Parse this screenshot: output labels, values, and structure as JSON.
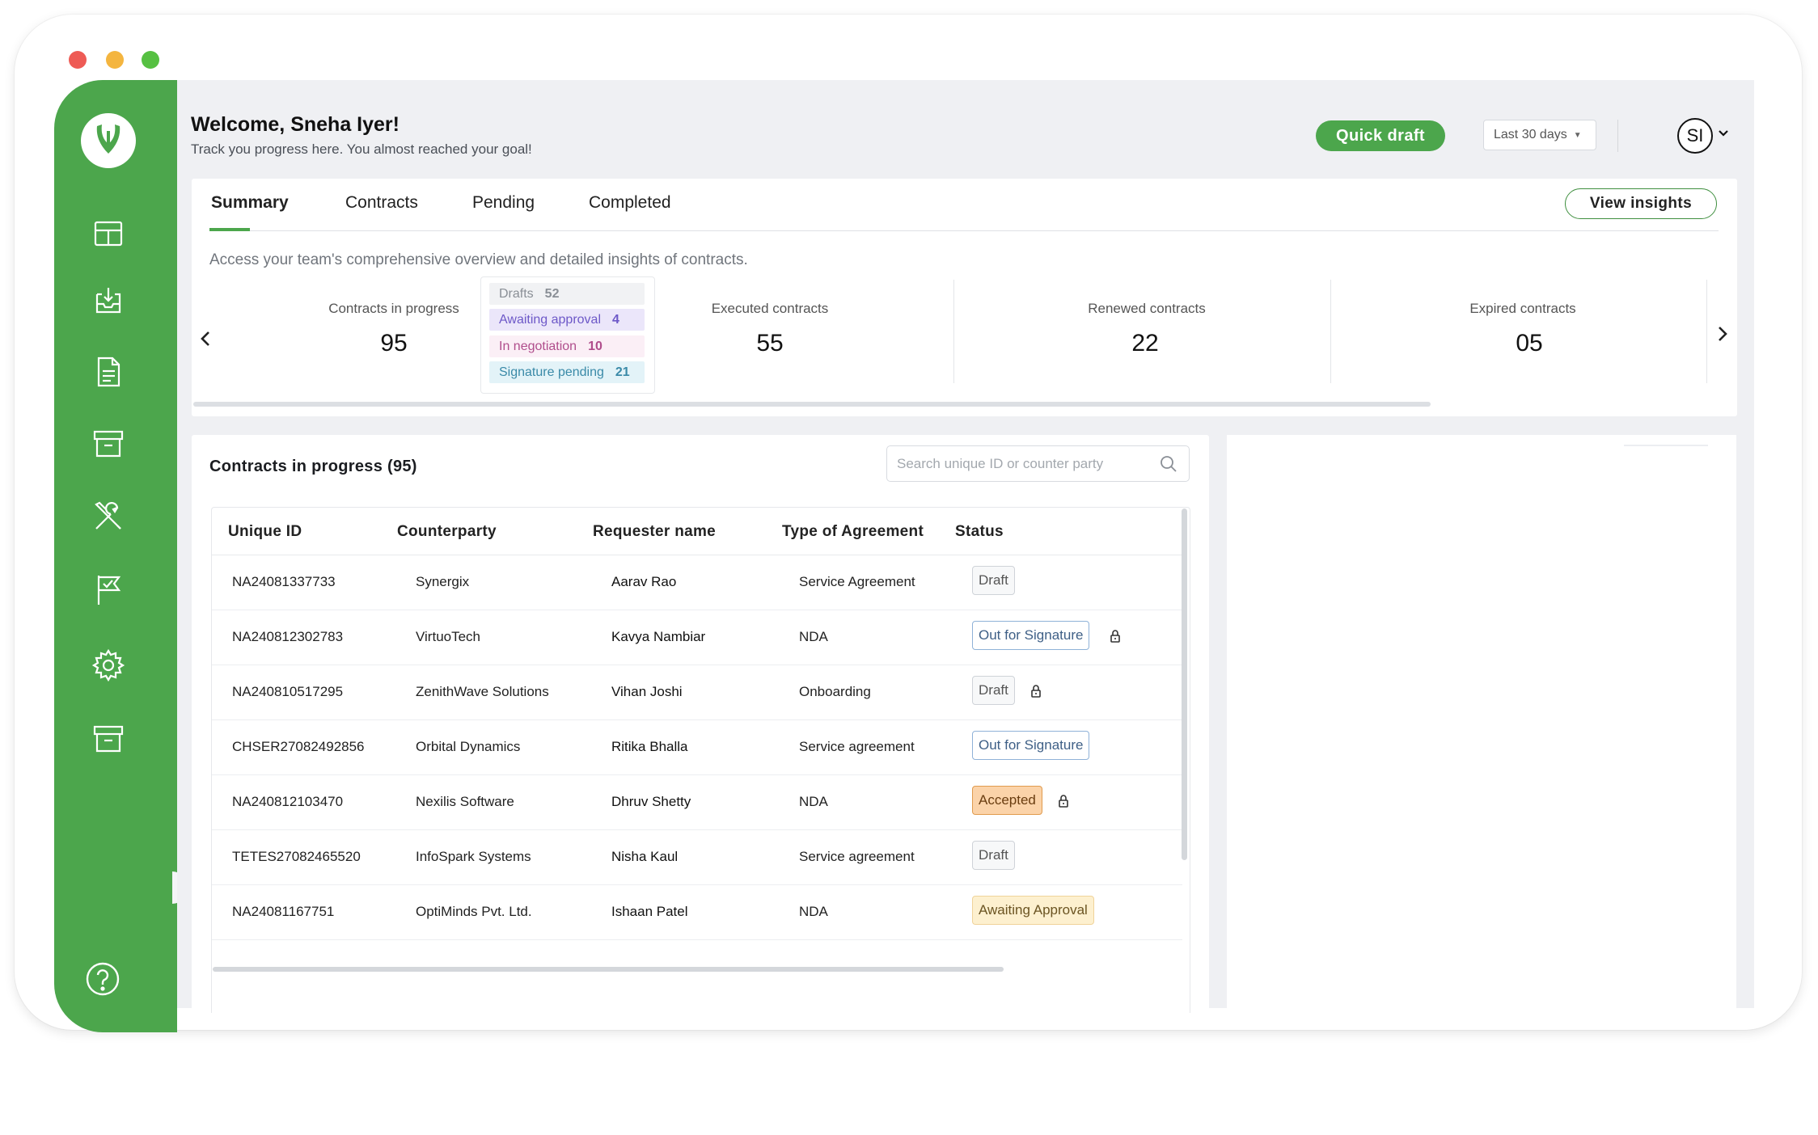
{
  "welcome": {
    "title": "Welcome, Sneha Iyer!",
    "subtitle": "Track you progress here. You almost reached your goal!"
  },
  "header": {
    "quick_draft_label": "Quick draft",
    "date_range": "Last 30 days",
    "avatar_initials": "SI"
  },
  "tabs": [
    {
      "label": "Summary",
      "active": true
    },
    {
      "label": "Contracts",
      "active": false
    },
    {
      "label": "Pending",
      "active": false
    },
    {
      "label": "Completed",
      "active": false
    }
  ],
  "view_insights_label": "View insights",
  "summary_description": "Access your team's comprehensive overview and detailed insights of contracts.",
  "stats": [
    {
      "label": "Contracts in progress",
      "value": "95"
    },
    {
      "label": "Executed contracts",
      "value": "55"
    },
    {
      "label": "Renewed contracts",
      "value": "22"
    },
    {
      "label": "Expired contracts",
      "value": "05"
    }
  ],
  "breakdown": [
    {
      "label": "Drafts",
      "count": "52"
    },
    {
      "label": "Awaiting approval",
      "count": "4"
    },
    {
      "label": "In negotiation",
      "count": "10"
    },
    {
      "label": "Signature pending",
      "count": "21"
    }
  ],
  "contracts": {
    "title": "Contracts in progress (95)",
    "search_placeholder": "Search unique ID or counter party",
    "columns": [
      "Unique ID",
      "Counterparty",
      "Requester name",
      "Type of Agreement",
      "Status"
    ],
    "rows": [
      {
        "id": "NA24081337733",
        "counterparty": "Synergix",
        "requester": "Aarav Rao",
        "type": "Service Agreement",
        "status": "Draft",
        "status_kind": "draft",
        "locked": false
      },
      {
        "id": "NA240812302783",
        "counterparty": "VirtuoTech",
        "requester": "Kavya Nambiar",
        "type": "NDA",
        "status": "Out for Signature",
        "status_kind": "sig",
        "locked": true
      },
      {
        "id": "NA240810517295",
        "counterparty": "ZenithWave Solutions",
        "requester": "Vihan Joshi",
        "type": "Onboarding",
        "status": "Draft",
        "status_kind": "draft",
        "locked": true
      },
      {
        "id": "CHSER27082492856",
        "counterparty": "Orbital Dynamics",
        "requester": "Ritika Bhalla",
        "type": "Service agreement",
        "status": "Out for Signature",
        "status_kind": "sig",
        "locked": false
      },
      {
        "id": "NA240812103470",
        "counterparty": "Nexilis Software",
        "requester": "Dhruv Shetty",
        "type": "NDA",
        "status": "Accepted",
        "status_kind": "accepted",
        "locked": true
      },
      {
        "id": "TETES27082465520",
        "counterparty": "InfoSpark Systems",
        "requester": "Nisha Kaul",
        "type": "Service agreement",
        "status": "Draft",
        "status_kind": "draft",
        "locked": false
      },
      {
        "id": "NA24081167751",
        "counterparty": "OptiMinds Pvt. Ltd.",
        "requester": "Ishaan Patel",
        "type": "NDA",
        "status": "Awaiting Approval",
        "status_kind": "awaiting",
        "locked": false
      }
    ]
  },
  "colors": {
    "brand_green": "#4ca64c",
    "background": "#eff0f3"
  },
  "sidebar": {
    "icons": [
      "dashboard-icon",
      "inbox-download-icon",
      "document-icon",
      "archive-icon",
      "tools-icon",
      "flag-check-icon",
      "gear-icon",
      "storage-box-icon"
    ],
    "help_icon": "help-icon"
  }
}
